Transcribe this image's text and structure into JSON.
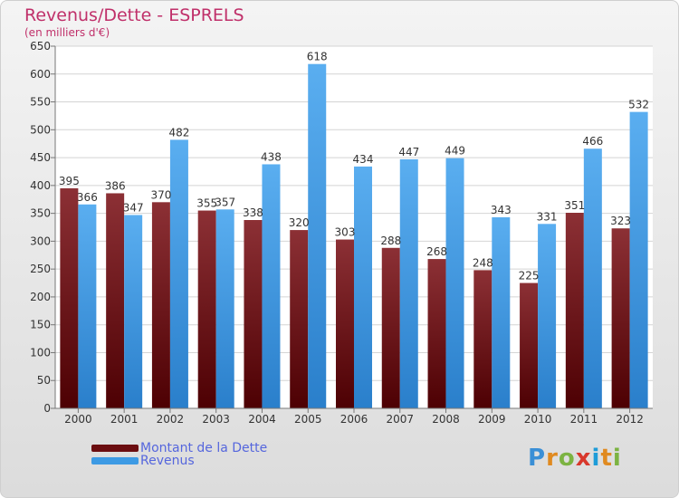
{
  "title": "Revenus/Dette - ESPRELS",
  "subtitle": "(en milliers d'€)",
  "legend": [
    {
      "label": "Montant de la Dette",
      "color": "#6b0d10"
    },
    {
      "label": "Revenus",
      "color": "#3d9ae4"
    }
  ],
  "logo": {
    "text": "Proxiti",
    "letter_colors": [
      "#3a8fd6",
      "#e08a20",
      "#7cb342",
      "#d8382c",
      "#1e9cd8",
      "#e08a20",
      "#7cb342"
    ]
  },
  "chart_data": {
    "type": "bar",
    "categories": [
      "2000",
      "2001",
      "2002",
      "2003",
      "2004",
      "2005",
      "2006",
      "2007",
      "2008",
      "2009",
      "2010",
      "2011",
      "2012"
    ],
    "series": [
      {
        "name": "Montant de la Dette",
        "values": [
          395,
          386,
          370,
          355,
          338,
          320,
          303,
          288,
          268,
          248,
          225,
          351,
          323
        ],
        "color": "#6b0d10"
      },
      {
        "name": "Revenus",
        "values": [
          366,
          347,
          482,
          357,
          438,
          618,
          434,
          447,
          449,
          343,
          331,
          466,
          532
        ],
        "color": "#3d9ae4"
      }
    ],
    "title": "Revenus/Dette - ESPRELS",
    "ylim": [
      0,
      650
    ],
    "yticks": [
      0,
      50,
      100,
      150,
      200,
      250,
      300,
      350,
      400,
      450,
      500,
      550,
      600,
      650
    ],
    "grid": true,
    "legend_position": "bottom-left"
  }
}
